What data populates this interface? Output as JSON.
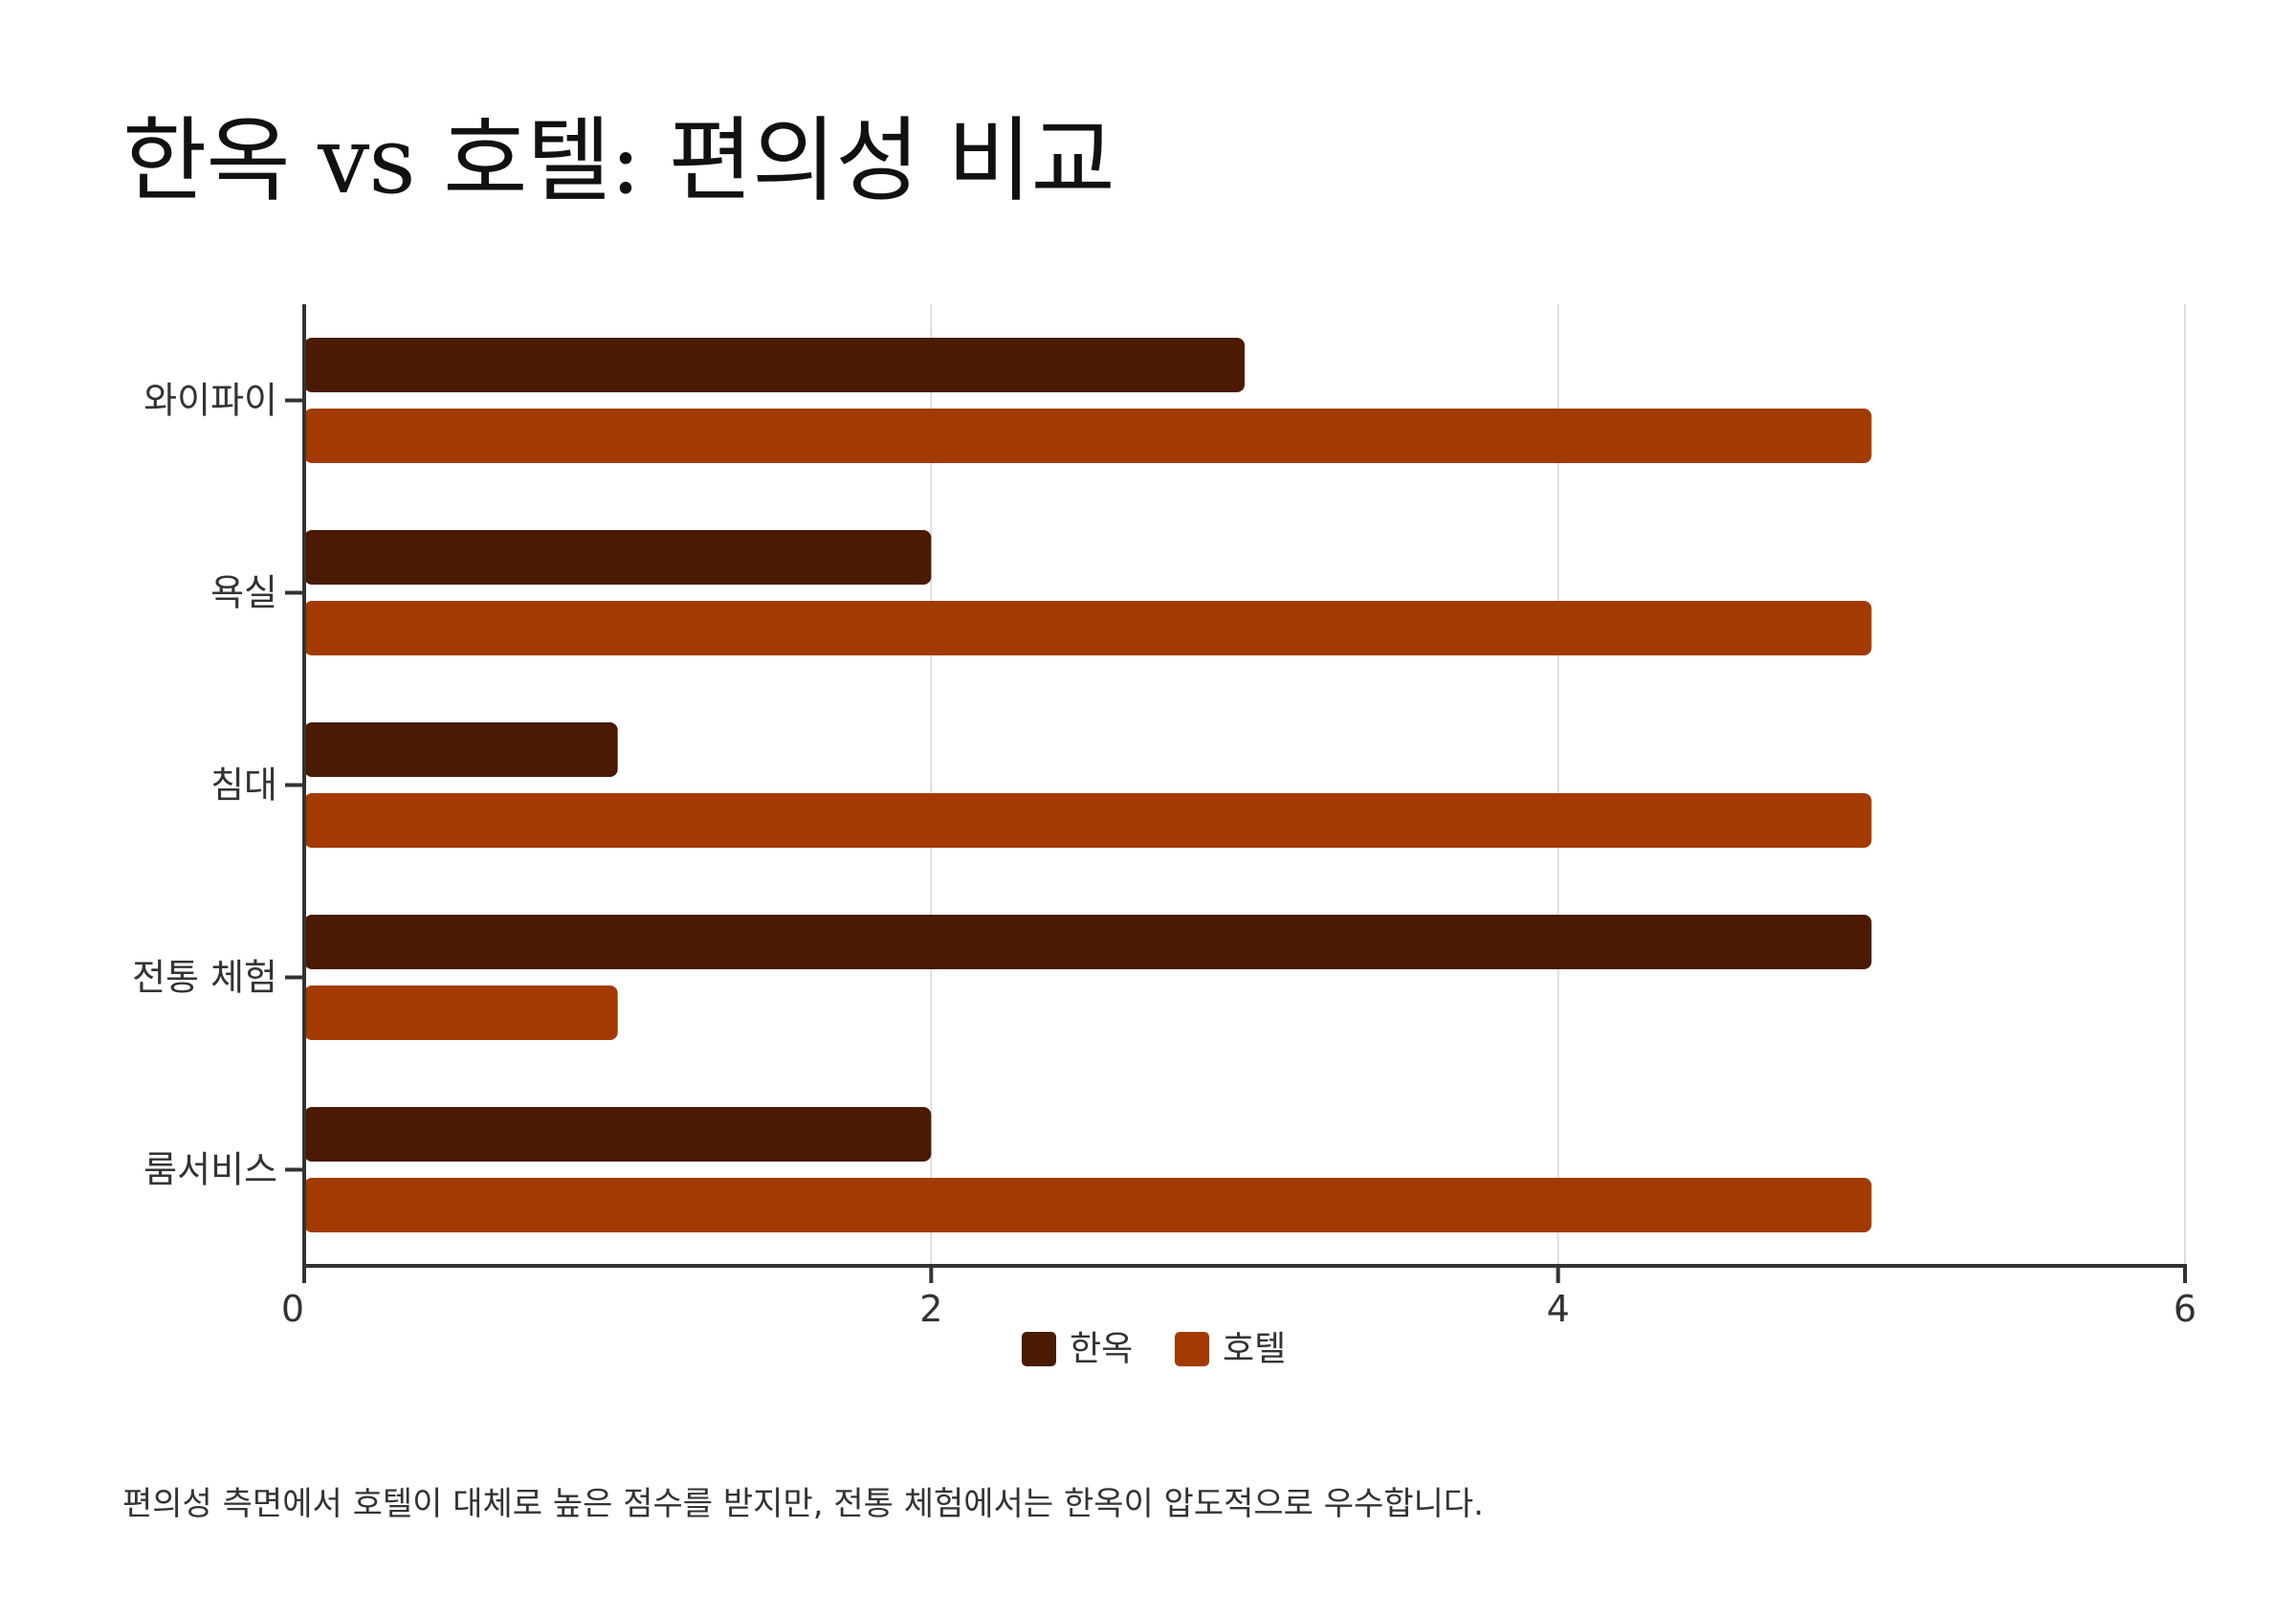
{
  "title": "한옥 vs 호텔: 편의성 비교",
  "footnote": "편의성 측면에서 호텔이 대체로 높은 점수를 받지만, 전통 체험에서는 한옥이 압도적으로 우수합니다.",
  "chart_data": {
    "type": "bar",
    "orientation": "horizontal",
    "categories": [
      "와이파이",
      "욕실",
      "침대",
      "전통 체험",
      "룸서비스"
    ],
    "series": [
      {
        "name": "한옥",
        "values": [
          3,
          2,
          1,
          5,
          2
        ],
        "color": "#4a1a02"
      },
      {
        "name": "호텔",
        "values": [
          5,
          5,
          5,
          1,
          5
        ],
        "color": "#a33a02"
      }
    ],
    "xlim": [
      0,
      6
    ],
    "xticks": [
      "0",
      "2",
      "4",
      "6"
    ],
    "xtick_values": [
      0,
      2,
      4,
      6
    ],
    "grid": true,
    "legend_position": "bottom-center"
  }
}
